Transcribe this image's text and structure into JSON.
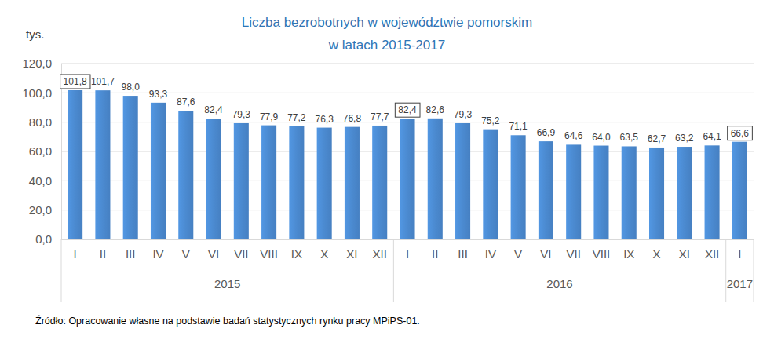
{
  "chart_data": {
    "type": "bar",
    "title": [
      "Liczba bezrobotnych w województwie pomorskim",
      "w latach 2015-2017"
    ],
    "y_label": "tys.",
    "source": "Źródło: Opracowanie własne na podstawie badań statystycznych rynku pracy MPiPS-01.",
    "categories": [
      "I",
      "II",
      "III",
      "IV",
      "V",
      "VI",
      "VII",
      "VIII",
      "IX",
      "X",
      "XI",
      "XII",
      "I",
      "II",
      "III",
      "IV",
      "V",
      "VI",
      "VII",
      "VIII",
      "IX",
      "X",
      "XI",
      "XII",
      "I"
    ],
    "groups": [
      "2015",
      "2015",
      "2015",
      "2015",
      "2015",
      "2015",
      "2015",
      "2015",
      "2015",
      "2015",
      "2015",
      "2015",
      "2016",
      "2016",
      "2016",
      "2016",
      "2016",
      "2016",
      "2016",
      "2016",
      "2016",
      "2016",
      "2016",
      "2016",
      "2017"
    ],
    "values": [
      101.8,
      101.7,
      98.0,
      93.3,
      87.6,
      82.4,
      79.3,
      77.9,
      77.2,
      76.3,
      76.8,
      77.7,
      82.4,
      82.6,
      79.3,
      75.2,
      71.1,
      66.9,
      64.6,
      64.0,
      63.5,
      62.7,
      63.2,
      64.1,
      66.6
    ],
    "value_labels": [
      "101,8",
      "101,7",
      "98,0",
      "93,3",
      "87,6",
      "82,4",
      "79,3",
      "77,9",
      "77,2",
      "76,3",
      "76,8",
      "77,7",
      "82,4",
      "82,6",
      "79,3",
      "75,2",
      "71,1",
      "66,9",
      "64,6",
      "64,0",
      "63,5",
      "62,7",
      "63,2",
      "64,1",
      "66,6"
    ],
    "color": "#4b8ad0",
    "ylim": [
      0,
      120
    ],
    "yticks": [
      {
        "value": 0,
        "label": "0,0"
      },
      {
        "value": 20,
        "label": "20,0"
      },
      {
        "value": 40,
        "label": "40,0"
      },
      {
        "value": 60,
        "label": "60,0"
      },
      {
        "value": 80,
        "label": "80,0"
      },
      {
        "value": 100,
        "label": "100,0"
      },
      {
        "value": 120,
        "label": "120,0"
      }
    ],
    "grid": true,
    "data_labels": true
  }
}
